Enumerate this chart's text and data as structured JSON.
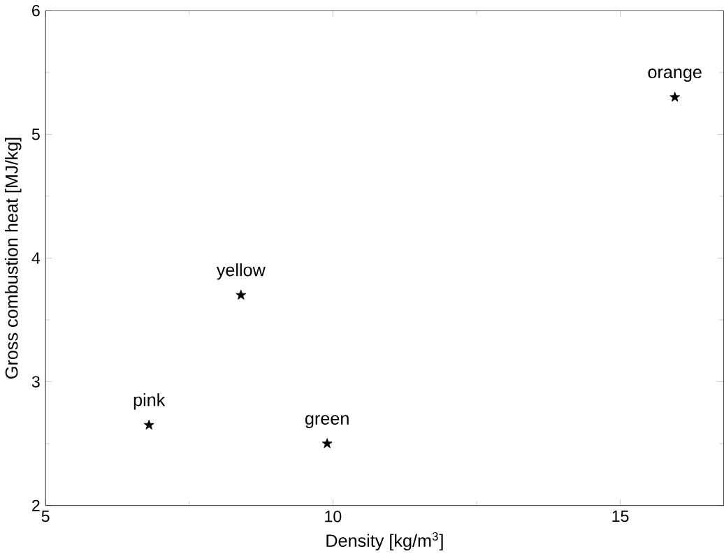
{
  "chart_data": {
    "type": "scatter",
    "xlabel": "Density [kg/m$^{3}$]",
    "ylabel": "Gross combustion heat [MJ/kg]",
    "x": [
      6.8,
      8.4,
      9.9,
      15.95
    ],
    "values": [
      2.65,
      3.7,
      2.5,
      5.3
    ],
    "color": "#000000",
    "marker": "star",
    "xlim": [
      5,
      16.8
    ],
    "ylim": [
      2,
      6
    ],
    "xticks": [
      5,
      10,
      15
    ],
    "yticks": [
      2,
      3,
      4,
      5,
      6
    ],
    "grid": false,
    "annotations": [
      {
        "text": "pink",
        "x": 6.8,
        "y": 2.65
      },
      {
        "text": "yellow",
        "x": 8.4,
        "y": 3.7
      },
      {
        "text": "green",
        "x": 9.9,
        "y": 2.5
      },
      {
        "text": "orange",
        "x": 15.95,
        "y": 5.3
      }
    ]
  }
}
